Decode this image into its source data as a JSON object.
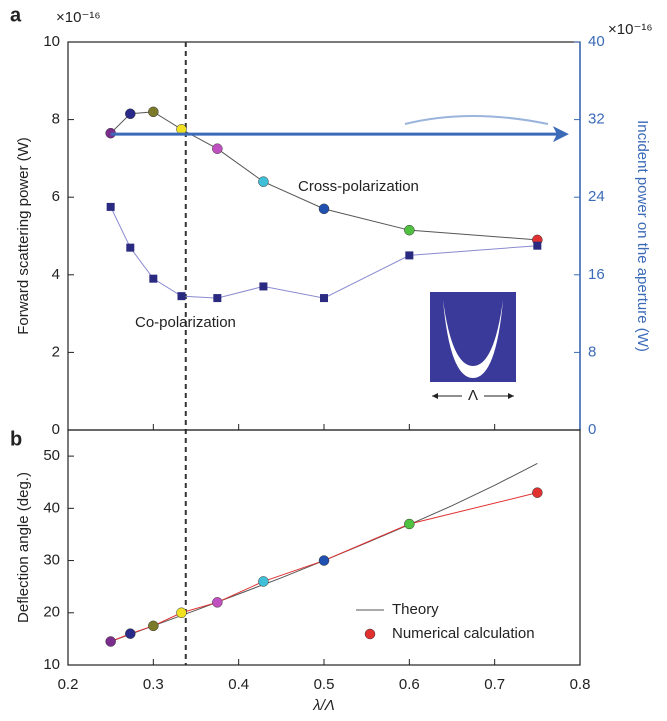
{
  "chart_data": [
    {
      "type": "line",
      "label": "a",
      "ylabel": "Forward scattering power (W)",
      "y2label": "Incident power on the aperture (W)",
      "y_exponent": "×10⁻¹⁶",
      "y2_exponent": "×10⁻¹⁶",
      "xlim": [
        0.2,
        0.8
      ],
      "xticks": [
        0.2,
        0.3,
        0.4,
        0.5,
        0.6,
        0.7,
        0.8
      ],
      "ylim": [
        0,
        10
      ],
      "yticks": [
        0,
        2,
        4,
        6,
        8,
        10
      ],
      "y2lim": [
        0,
        40
      ],
      "y2ticks": [
        0,
        8,
        16,
        24,
        32,
        40
      ],
      "vline": 0.338,
      "annotations": [
        "Cross-polarization",
        "Co-polarization"
      ],
      "inset_label": "Λ",
      "series": [
        {
          "marker": "circle",
          "color": "#555555",
          "x": [
            0.25,
            0.273,
            0.3,
            0.333,
            0.375,
            0.429,
            0.5,
            0.6,
            0.75
          ],
          "values": [
            7.65,
            8.15,
            8.2,
            7.75,
            7.25,
            6.4,
            5.7,
            5.15,
            4.9
          ],
          "colors": [
            "#7b2d8e",
            "#2a2a8a",
            "#7a7a2a",
            "#f0e020",
            "#c050c0",
            "#40c0d8",
            "#2050b0",
            "#50c040",
            "#e03030"
          ]
        },
        {
          "marker": "square",
          "color": "#8a8ad0",
          "x": [
            0.25,
            0.273,
            0.3,
            0.333,
            0.375,
            0.429,
            0.5,
            0.6,
            0.75
          ],
          "values": [
            5.75,
            4.7,
            3.9,
            3.45,
            3.4,
            3.7,
            3.4,
            4.5,
            4.75
          ],
          "colors": [
            "#2a2a80",
            "#2a2a80",
            "#2a2a80",
            "#2a2a80",
            "#2a2a80",
            "#2a2a80",
            "#2a2a80",
            "#2a2a80",
            "#2a2a80"
          ]
        },
        {
          "marker": "arrow",
          "axis": "y2",
          "color": "#3a6ab8",
          "x": [
            0.25,
            0.78
          ],
          "values": [
            30.5,
            30.5
          ]
        }
      ]
    },
    {
      "type": "line",
      "label": "b",
      "xlabel": "λ/Λ",
      "ylabel": "Deflection angle (deg.)",
      "xlim": [
        0.2,
        0.8
      ],
      "xticks": [
        0.2,
        0.3,
        0.4,
        0.5,
        0.6,
        0.7,
        0.8
      ],
      "ylim": [
        10,
        55
      ],
      "yticks": [
        10,
        20,
        30,
        40,
        50
      ],
      "legend": "lower right",
      "series": [
        {
          "name": "Theory",
          "marker": "none",
          "color": "#555555",
          "x": [
            0.25,
            0.3,
            0.35,
            0.4,
            0.45,
            0.5,
            0.55,
            0.6,
            0.65,
            0.7,
            0.75
          ],
          "values": [
            14.5,
            17.5,
            20.5,
            23.6,
            26.7,
            30,
            33.4,
            36.9,
            40.5,
            44.4,
            48.6
          ]
        },
        {
          "name": "Numerical calculation",
          "marker": "circle",
          "color": "#e03030",
          "x": [
            0.25,
            0.273,
            0.3,
            0.333,
            0.375,
            0.429,
            0.5,
            0.6,
            0.75
          ],
          "values": [
            14.5,
            16,
            17.5,
            20,
            22,
            26,
            30,
            37,
            43
          ],
          "colors": [
            "#7b2d8e",
            "#2a2a8a",
            "#7a7a2a",
            "#f0e020",
            "#c050c0",
            "#40c0d8",
            "#2050b0",
            "#50c040",
            "#e03030"
          ]
        }
      ]
    }
  ]
}
